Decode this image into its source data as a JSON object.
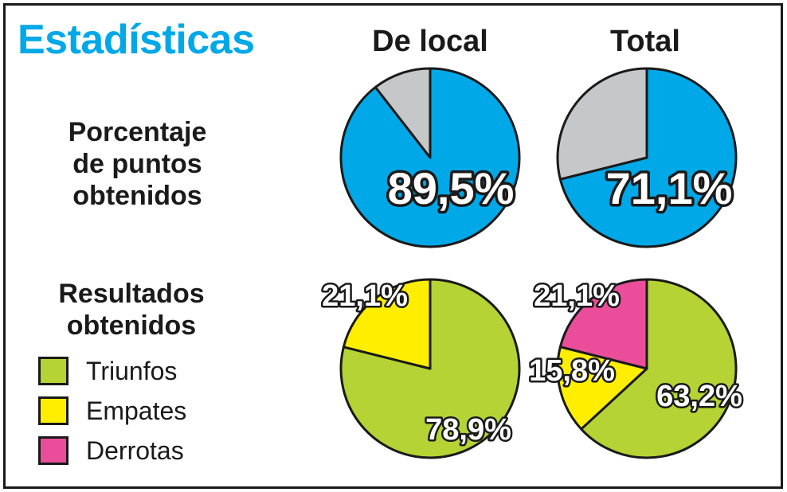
{
  "header": {
    "title": "Estadísticas",
    "title_color": "#00a8e8"
  },
  "columns": {
    "local": "De local",
    "total": "Total"
  },
  "rows": {
    "points": [
      "Porcentaje",
      "de puntos",
      "obtenidos"
    ],
    "results": [
      "Resultados",
      "obtenidos"
    ]
  },
  "legend": [
    {
      "label": "Triunfos",
      "color": "#b5d334"
    },
    {
      "label": "Empates",
      "color": "#ffee00"
    },
    {
      "label": "Derrotas",
      "color": "#ea4e9b"
    }
  ],
  "chart_data": [
    {
      "type": "pie",
      "group": "Porcentaje de puntos obtenidos",
      "column": "De local",
      "slices": [
        {
          "value": 89.5,
          "label": "89,5%",
          "color": "#00a8e8"
        },
        {
          "value": 10.5,
          "label": "",
          "color": "#c6c7c8"
        }
      ]
    },
    {
      "type": "pie",
      "group": "Porcentaje de puntos obtenidos",
      "column": "Total",
      "slices": [
        {
          "value": 71.1,
          "label": "71,1%",
          "color": "#00a8e8"
        },
        {
          "value": 28.9,
          "label": "",
          "color": "#c6c7c8"
        }
      ]
    },
    {
      "type": "pie",
      "group": "Resultados obtenidos",
      "column": "De local",
      "slices": [
        {
          "name": "Triunfos",
          "value": 78.9,
          "label": "78,9%",
          "color": "#b5d334"
        },
        {
          "name": "Empates",
          "value": 21.1,
          "label": "21,1%",
          "color": "#ffee00"
        }
      ]
    },
    {
      "type": "pie",
      "group": "Resultados obtenidos",
      "column": "Total",
      "slices": [
        {
          "name": "Triunfos",
          "value": 63.2,
          "label": "63,2%",
          "color": "#b5d334"
        },
        {
          "name": "Empates",
          "value": 15.8,
          "label": "15,8%",
          "color": "#ffee00"
        },
        {
          "name": "Derrotas",
          "value": 21.1,
          "label": "21,1%",
          "color": "#ea4e9b"
        }
      ]
    }
  ]
}
